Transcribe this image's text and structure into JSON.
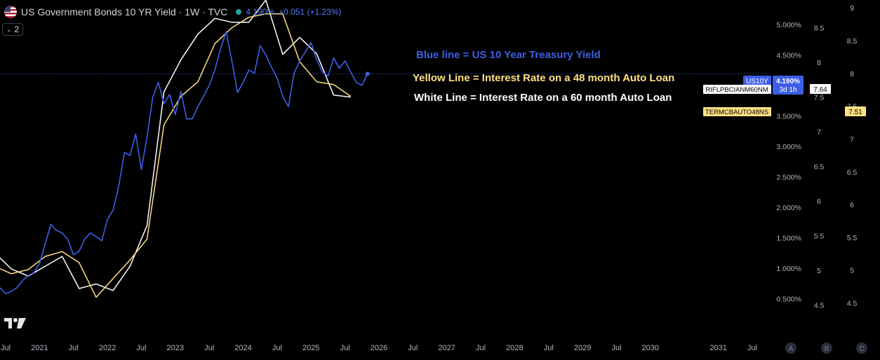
{
  "header": {
    "title": "US Government Bonds 10 YR Yield · 1W · TVC",
    "price": "4.190%",
    "change": "+0.051 (+1.23%)"
  },
  "toolbar": {
    "collapse_count": "2"
  },
  "annotations": {
    "blue": "Blue line = US 10 Year Treasury Yield",
    "yellow": "Yellow Line = Interest Rate on a 48 month Auto Loan",
    "white": "White Line = Interest Rate on a 60 month Auto Loan"
  },
  "badges": {
    "us10y_symbol": "US10Y",
    "us10y_value": "4.190%",
    "us10y_countdown": "3d 1h",
    "white_symbol": "RIFLPBCIANM60NM",
    "white_value": "7.64",
    "yellow_symbol": "TERMCBAUTO48NS",
    "yellow_value": "7.51"
  },
  "colors": {
    "background": "#000000",
    "blue": "#3d5fe6",
    "yellow": "#ffe082",
    "white": "#ffffff",
    "axis_text": "#b2b5be",
    "current_line": "#3d5fe6"
  },
  "axis_buttons": [
    "A",
    "B",
    "C"
  ],
  "chart_data": {
    "type": "line",
    "title": "US Government Bonds 10 YR Yield · 1W · TVC",
    "x_range": [
      "2020-04",
      "2031-10"
    ],
    "x_ticks": [
      "Jul",
      "2021",
      "Jul",
      "2022",
      "Jul",
      "2023",
      "Jul",
      "2024",
      "Jul",
      "2025",
      "Jul",
      "2026",
      "Jul",
      "2027",
      "Jul",
      "2028",
      "Jul",
      "2029",
      "Jul",
      "2030",
      "2031",
      "Jul"
    ],
    "x_tick_dates": [
      "2020-07",
      "2021-01",
      "2021-07",
      "2022-01",
      "2022-07",
      "2023-01",
      "2023-07",
      "2024-01",
      "2024-07",
      "2025-01",
      "2025-07",
      "2026-01",
      "2026-07",
      "2027-01",
      "2027-07",
      "2028-01",
      "2028-07",
      "2029-01",
      "2029-07",
      "2030-01",
      "2031-01",
      "2031-07"
    ],
    "y_axes": [
      {
        "id": "A",
        "unit": "%",
        "range": [
          0.0,
          5.4
        ],
        "ticks": [
          "0.500%",
          "1.000%",
          "1.500%",
          "2.000%",
          "2.500%",
          "3.000%",
          "3.500%",
          "4.000%",
          "4.500%",
          "5.000%"
        ],
        "tick_values": [
          0.5,
          1.0,
          1.5,
          2.0,
          2.5,
          3.0,
          3.5,
          4.0,
          4.5,
          5.0
        ]
      },
      {
        "id": "B",
        "range": [
          4.15,
          8.9
        ],
        "ticks": [
          "4.5",
          "5",
          "5.5",
          "6",
          "6.5",
          "7",
          "7.5",
          "8",
          "8.5"
        ],
        "tick_values": [
          4.5,
          5.0,
          5.5,
          6.0,
          6.5,
          7.0,
          7.5,
          8.0,
          8.5
        ]
      },
      {
        "id": "C",
        "range": [
          4.1,
          9.12
        ],
        "ticks": [
          "4.5",
          "5",
          "5.5",
          "6",
          "6.5",
          "7",
          "7.5",
          "8",
          "8.5",
          "9"
        ],
        "tick_values": [
          4.5,
          5.0,
          5.5,
          6.0,
          6.5,
          7.0,
          7.5,
          8.0,
          8.5,
          9.0
        ]
      }
    ],
    "series": [
      {
        "name": "US10Y",
        "axis": "A",
        "x": [
          "2020-04",
          "2020-05",
          "2020-06",
          "2020-07",
          "2020-08",
          "2020-09",
          "2020-10",
          "2020-11",
          "2020-12",
          "2021-01",
          "2021-02",
          "2021-03",
          "2021-04",
          "2021-05",
          "2021-06",
          "2021-07",
          "2021-08",
          "2021-09",
          "2021-10",
          "2021-11",
          "2021-12",
          "2022-01",
          "2022-02",
          "2022-03",
          "2022-04",
          "2022-05",
          "2022-06",
          "2022-07",
          "2022-08",
          "2022-09",
          "2022-10",
          "2022-11",
          "2022-12",
          "2023-01",
          "2023-02",
          "2023-03",
          "2023-04",
          "2023-05",
          "2023-06",
          "2023-07",
          "2023-08",
          "2023-09",
          "2023-10",
          "2023-11",
          "2023-12",
          "2024-01",
          "2024-02",
          "2024-03",
          "2024-04",
          "2024-05",
          "2024-06",
          "2024-07",
          "2024-08",
          "2024-09",
          "2024-10",
          "2024-11",
          "2024-12",
          "2025-01",
          "2025-02",
          "2025-03",
          "2025-04",
          "2025-05",
          "2025-06",
          "2025-07",
          "2025-08",
          "2025-09",
          "2025-10",
          "2025-11"
        ],
        "values": [
          0.62,
          0.65,
          0.68,
          0.58,
          0.62,
          0.68,
          0.8,
          0.88,
          0.93,
          1.08,
          1.4,
          1.72,
          1.62,
          1.58,
          1.47,
          1.22,
          1.28,
          1.48,
          1.58,
          1.52,
          1.45,
          1.8,
          1.95,
          2.35,
          2.9,
          2.85,
          3.2,
          2.62,
          3.15,
          3.8,
          4.05,
          3.7,
          3.85,
          3.52,
          3.9,
          3.45,
          3.45,
          3.65,
          3.82,
          4.0,
          4.25,
          4.6,
          4.88,
          4.4,
          3.88,
          4.05,
          4.25,
          4.2,
          4.65,
          4.5,
          4.3,
          4.12,
          3.82,
          3.65,
          4.2,
          4.4,
          4.55,
          4.7,
          4.42,
          4.22,
          4.15,
          4.45,
          4.28,
          4.4,
          4.22,
          4.05,
          4.0,
          4.19
        ]
      },
      {
        "name": "TERMCBAUTO48NS",
        "axis": "B",
        "x": [
          "2020-05",
          "2020-08",
          "2020-11",
          "2021-02",
          "2021-05",
          "2021-08",
          "2021-11",
          "2022-02",
          "2022-05",
          "2022-08",
          "2022-11",
          "2023-02",
          "2023-05",
          "2023-08",
          "2023-11",
          "2024-02",
          "2024-05",
          "2024-08",
          "2024-11",
          "2025-02",
          "2025-05",
          "2025-08"
        ],
        "values": [
          5.06,
          4.95,
          5.01,
          5.2,
          5.27,
          5.11,
          4.61,
          4.88,
          5.15,
          5.45,
          7.1,
          7.51,
          7.72,
          8.27,
          8.5,
          8.65,
          8.7,
          8.7,
          8.01,
          7.72,
          7.68,
          7.51
        ]
      },
      {
        "name": "RIFLPBCIANM60NM",
        "axis": "C",
        "x": [
          "2020-05",
          "2020-08",
          "2020-11",
          "2021-02",
          "2021-05",
          "2021-08",
          "2021-11",
          "2022-02",
          "2022-05",
          "2022-08",
          "2022-11",
          "2023-02",
          "2023-05",
          "2023-08",
          "2023-11",
          "2024-02",
          "2024-05",
          "2024-08",
          "2024-11",
          "2025-02",
          "2025-05",
          "2025-08"
        ],
        "values": [
          5.27,
          5.02,
          4.91,
          5.06,
          5.21,
          4.72,
          4.79,
          4.69,
          5.06,
          5.68,
          7.72,
          8.21,
          8.6,
          8.84,
          8.78,
          8.78,
          9.12,
          8.29,
          8.55,
          8.3,
          7.67,
          7.64
        ]
      }
    ],
    "current_values": {
      "US10Y": "4.190%",
      "RIFLPBCIANM60NM": "7.64",
      "TERMCBAUTO48NS": "7.51"
    },
    "grid": false,
    "legend": "none"
  }
}
